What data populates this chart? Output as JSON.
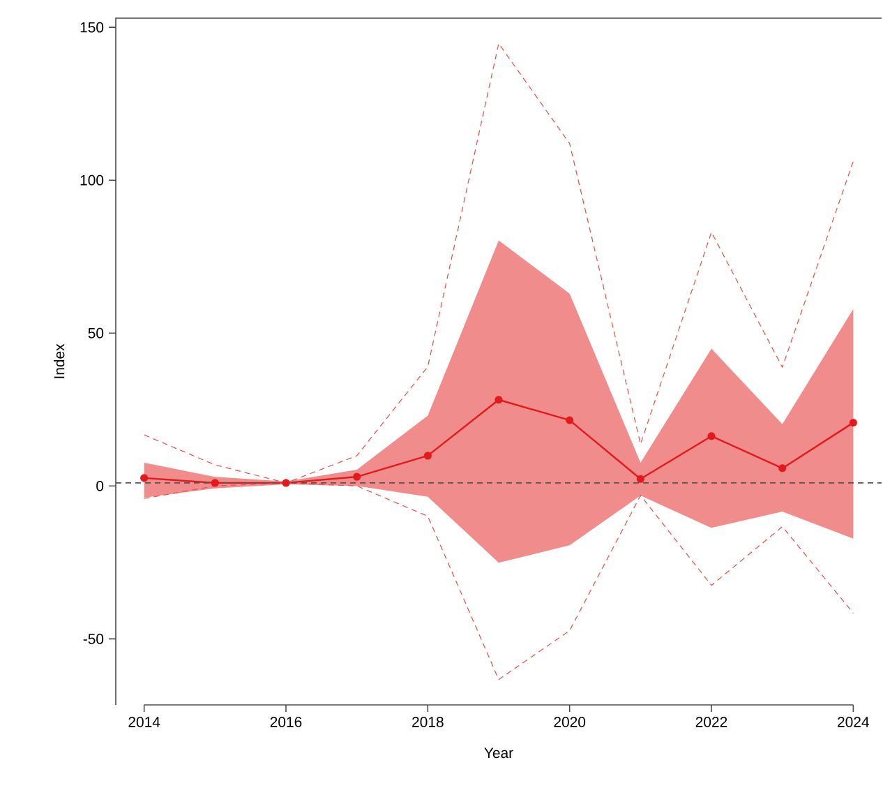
{
  "chart_data": {
    "type": "line",
    "xlabel": "Year",
    "ylabel": "Index",
    "x": [
      2014,
      2015,
      2016,
      2017,
      2018,
      2019,
      2020,
      2021,
      2022,
      2023,
      2024
    ],
    "series": [
      {
        "color": "#e31a1c",
        "marker": "circle",
        "values": [
          2.6,
          1.0,
          1,
          3.0,
          9.9,
          28.2,
          21.5,
          2.3,
          16.3,
          5.8,
          20.7
        ],
        "lower": [
          -3.8,
          -0.8,
          0.5,
          0,
          -3.5,
          -25.1,
          -19.4,
          -3.1,
          -13.7,
          -8.4,
          -17.2
        ],
        "upper": [
          7.6,
          3.0,
          1.5,
          5.3,
          23,
          80.3,
          62.9,
          7.6,
          44.9,
          20.2,
          57.9
        ]
      },
      {
        "color": "#f04a4a",
        "line_style": "dashed",
        "values": [
          16.7,
          6.9,
          1,
          9.9,
          39,
          144.7,
          112,
          13.7,
          83,
          38.8,
          106.2
        ]
      },
      {
        "color": "#f04a4a",
        "line_style": "dashed",
        "values": [
          -4.1,
          0,
          1,
          0,
          -9.9,
          -63.3,
          -47.3,
          -3.1,
          -32.5,
          -13.3,
          -41.6
        ]
      }
    ],
    "ref_lines": [
      {
        "axis": "y",
        "value": 1,
        "color": "#555555",
        "line_style": "dashed"
      }
    ],
    "xlim": [
      2013.6,
      2024.4
    ],
    "ylim": [
      -71.6,
      153
    ],
    "xticks": [
      2014,
      2016,
      2018,
      2020,
      2022,
      2024
    ],
    "yticks": [
      -50,
      0,
      50,
      100,
      150
    ]
  }
}
